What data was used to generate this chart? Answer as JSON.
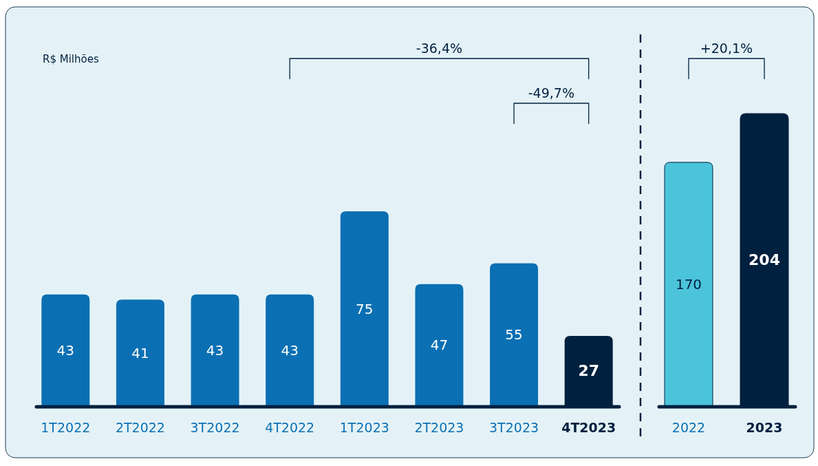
{
  "chart_data": [
    {
      "type": "bar",
      "categories": [
        "1T2022",
        "2T2022",
        "3T2022",
        "4T2022",
        "1T2023",
        "2T2023",
        "3T2023",
        "4T2023"
      ],
      "values": [
        43,
        41,
        43,
        43,
        75,
        47,
        55,
        27
      ],
      "colors": [
        "#0b70b3",
        "#0b70b3",
        "#0b70b3",
        "#0b70b3",
        "#0b70b3",
        "#0b70b3",
        "#0b70b3",
        "#00203f"
      ],
      "data_labels": true,
      "annotations": [
        "R$ Milhões",
        "-36,4%",
        "-49,7%"
      ]
    },
    {
      "type": "bar",
      "categories": [
        "2022",
        "2023"
      ],
      "values": [
        170,
        204
      ],
      "colors": [
        "#4bc4da",
        "#00203f"
      ],
      "data_labels": true,
      "annotations": [
        "+20,1%"
      ]
    }
  ]
}
